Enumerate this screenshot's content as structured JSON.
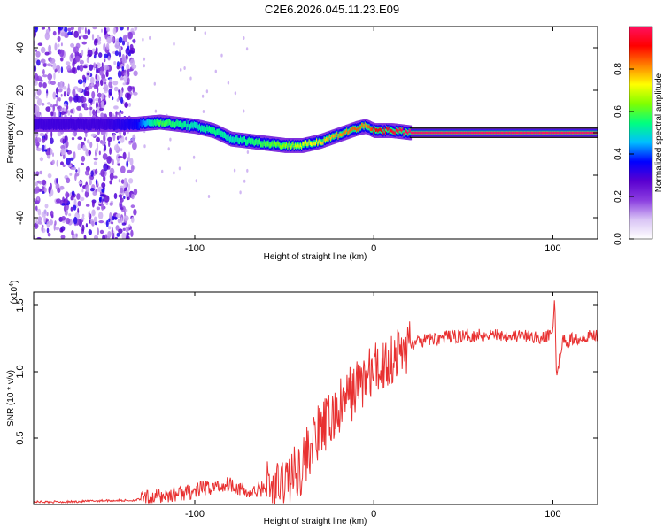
{
  "title": "C2E6.2026.045.11.23.E09",
  "chart_data": [
    {
      "type": "heatmap",
      "title": "C2E6.2026.045.11.23.E09",
      "xlabel": "Height of straight line (km)",
      "ylabel": "Frequency (Hz)",
      "xlim": [
        -190,
        125
      ],
      "ylim": [
        -50,
        50
      ],
      "xticks": [
        -100,
        0,
        100
      ],
      "yticks": [
        -40,
        -20,
        0,
        20,
        40
      ],
      "xtick_labels": [
        "-100",
        "0",
        "100"
      ],
      "ytick_labels": [
        "-40",
        "-20",
        "0",
        "20",
        "40"
      ],
      "noise_region_x": [
        -190,
        -133
      ],
      "ridge": {
        "x": [
          -190,
          -150,
          -133,
          -120,
          -110,
          -100,
          -90,
          -80,
          -70,
          -60,
          -50,
          -40,
          -30,
          -20,
          -10,
          -5,
          0,
          10,
          20,
          50,
          100,
          125
        ],
        "y": [
          4,
          4,
          4,
          5,
          4,
          3,
          1,
          -3,
          -4,
          -5,
          -6,
          -6,
          -4,
          -1,
          2,
          3,
          1,
          1,
          0,
          0,
          0,
          0
        ],
        "amplitude": [
          0.3,
          0.3,
          0.35,
          0.6,
          0.55,
          0.5,
          0.55,
          0.5,
          0.55,
          0.6,
          0.65,
          0.7,
          0.75,
          0.8,
          0.85,
          0.8,
          0.9,
          0.95,
          1.0,
          1.0,
          1.0,
          1.0
        ]
      },
      "colorbar": {
        "label": "Normalized spectral amplitude",
        "range": [
          0.0,
          1.0
        ],
        "ticks": [
          0.0,
          0.2,
          0.4,
          0.6,
          0.8
        ],
        "tick_labels": [
          "0.0",
          "0.2",
          "0.4",
          "0.6",
          "0.8"
        ],
        "colors": [
          "#ffffff",
          "#d9c4f5",
          "#8b3ee0",
          "#5a00d0",
          "#0000ff",
          "#00bfff",
          "#00ff80",
          "#80ff00",
          "#ffff00",
          "#ff8000",
          "#ff0000",
          "#ff1060"
        ]
      }
    },
    {
      "type": "line",
      "xlabel": "Height of straight line (km)",
      "ylabel": "SNR (10 * v/v)",
      "y_scale_label": "(x10",
      "y_scale_exp": "4",
      "y_scale_suffix": ")",
      "xlim": [
        -190,
        125
      ],
      "ylim": [
        0,
        1.6
      ],
      "xticks": [
        -100,
        0,
        100
      ],
      "yticks": [
        0.5,
        1.0,
        1.5
      ],
      "xtick_labels": [
        "-100",
        "0",
        "100"
      ],
      "ytick_labels": [
        "0.5",
        "1.0",
        "1.5"
      ],
      "color": "#e83030",
      "series": [
        {
          "name": "SNR",
          "x": [
            -190,
            -170,
            -150,
            -135,
            -120,
            -110,
            -100,
            -95,
            -90,
            -85,
            -80,
            -75,
            -70,
            -65,
            -60,
            -55,
            -50,
            -45,
            -40,
            -35,
            -30,
            -25,
            -20,
            -15,
            -10,
            -5,
            0,
            5,
            10,
            15,
            20,
            30,
            40,
            50,
            60,
            70,
            80,
            90,
            95,
            100,
            101,
            102,
            105,
            110,
            115,
            120,
            125
          ],
          "y": [
            0.02,
            0.02,
            0.03,
            0.03,
            0.06,
            0.08,
            0.1,
            0.12,
            0.13,
            0.14,
            0.16,
            0.12,
            0.08,
            0.1,
            0.14,
            0.1,
            0.18,
            0.22,
            0.3,
            0.45,
            0.55,
            0.62,
            0.7,
            0.8,
            0.88,
            0.95,
            1.0,
            1.05,
            1.1,
            1.15,
            1.2,
            1.24,
            1.26,
            1.27,
            1.28,
            1.28,
            1.27,
            1.26,
            1.25,
            1.3,
            1.58,
            0.95,
            1.22,
            1.24,
            1.26,
            1.27,
            1.28
          ]
        }
      ]
    }
  ]
}
